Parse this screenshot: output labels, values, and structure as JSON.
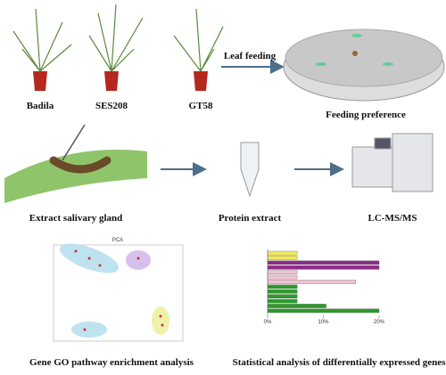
{
  "labels": {
    "plant_1": "Badila",
    "plant_2": "SES208",
    "plant_3": "GT58",
    "arrow_1": "Leaf feeding",
    "dish": "Feeding preference",
    "step_1": "Extract salivary gland",
    "step_2": "Protein extract",
    "step_3": "LC-MS/MS",
    "panel_1": "Gene GO pathway enrichment analysis",
    "panel_2": "Statistical analysis of differentially expressed genes"
  },
  "pca": {
    "title": "PCA"
  },
  "bar_panel": {
    "xlim": [
      0,
      20
    ],
    "xticks": [
      {
        "value": 0,
        "label": "0%"
      },
      {
        "value": 10,
        "label": "10%"
      },
      {
        "value": 20,
        "label": "20%"
      }
    ],
    "groups": [
      {
        "color": "#f2ea5a",
        "values": [
          5.3,
          5.3
        ]
      },
      {
        "color": "#8e2a8a",
        "values": [
          20,
          20
        ]
      },
      {
        "color": "#efc4d2",
        "values": [
          5.3,
          5.3,
          15.8
        ]
      },
      {
        "color": "#2d9a2a",
        "values": [
          5.3,
          5.3,
          5.3,
          5.3,
          10.5,
          20
        ]
      }
    ]
  }
}
